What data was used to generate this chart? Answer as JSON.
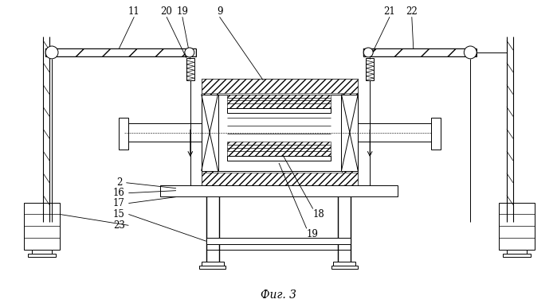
{
  "title": "Фиг. 3",
  "bg": "#ffffff",
  "lc": "#000000",
  "fig_width": 6.99,
  "fig_height": 3.86,
  "dpi": 100
}
